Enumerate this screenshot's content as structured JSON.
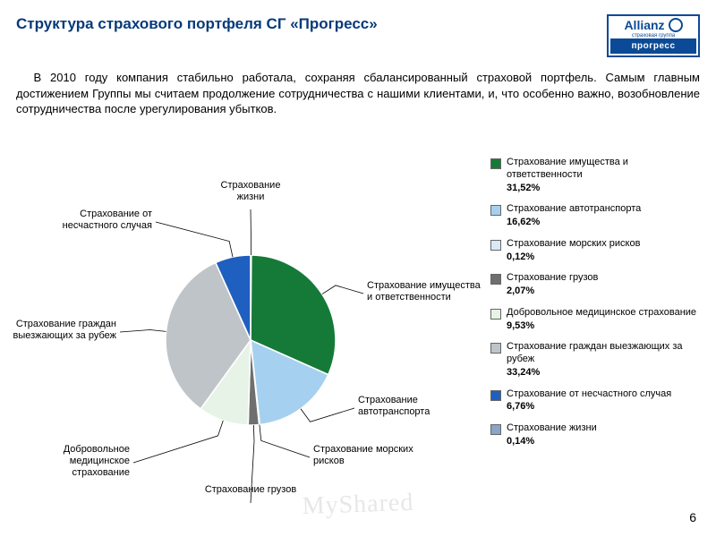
{
  "header": {
    "title": "Структура страхового портфеля СГ «Прогресс»",
    "logo_top": "Allianz",
    "logo_sub": "страховая группа",
    "logo_bottom": "прогресс"
  },
  "paragraph": "В 2010 году компания стабильно работала, сохраняя сбалансированный страховой портфель. Самым главным достижением Группы мы считаем продолжение сотрудничества с нашими клиентами, и, что особенно важно, возобновление сотрудничества после урегулирования убытков.",
  "page_number": "6",
  "watermark": "MyShared",
  "chart": {
    "type": "pie",
    "radius": 95,
    "stroke": "#ffffff",
    "stroke_width": 1.6,
    "start_angle_deg": -90,
    "title_color": "#083a7a",
    "bg": "#ffffff",
    "callout_fontsize": 11,
    "slices": [
      {
        "label": "Страхование жизни",
        "short": [
          "Страхование",
          "жизни"
        ],
        "value": 0.14,
        "color": "#8aa5c9",
        "pct": "0,14%"
      },
      {
        "label": "Страхование имущества и ответственности",
        "short": [
          "Страхование имущества",
          "и ответственности"
        ],
        "value": 31.52,
        "color": "#157a38",
        "pct": "31,52%"
      },
      {
        "label": "Страхование автотранспорта",
        "short": [
          "Страхование",
          "автотранспорта"
        ],
        "value": 16.62,
        "color": "#a6d0ef",
        "pct": "16,62%"
      },
      {
        "label": "Страхование морских рисков",
        "short": [
          "Страхование морских",
          "рисков"
        ],
        "value": 0.12,
        "color": "#d9eaf7",
        "pct": "0,12%"
      },
      {
        "label": "Страхование грузов",
        "short": [
          "Страхование грузов"
        ],
        "value": 2.07,
        "color": "#6f6f6f",
        "pct": "2,07%"
      },
      {
        "label": "Добровольное медицинское страхование",
        "short": [
          "Добровольное",
          "медицинское",
          "страхование"
        ],
        "value": 9.53,
        "color": "#e6f3e6",
        "pct": "9,53%"
      },
      {
        "label": "Страхование граждан выезжающих за рубеж",
        "short": [
          "Страхование граждан",
          "выезжающих за рубеж"
        ],
        "value": 33.24,
        "color": "#bfc4c8",
        "pct": "33,24%"
      },
      {
        "label": "Страхование от несчастного случая",
        "short": [
          "Страхование от",
          "несчастного случая"
        ],
        "value": 6.76,
        "color": "#1f5fbf",
        "pct": "6,76%"
      }
    ],
    "legend_order": [
      1,
      2,
      3,
      4,
      5,
      6,
      7,
      0
    ]
  }
}
